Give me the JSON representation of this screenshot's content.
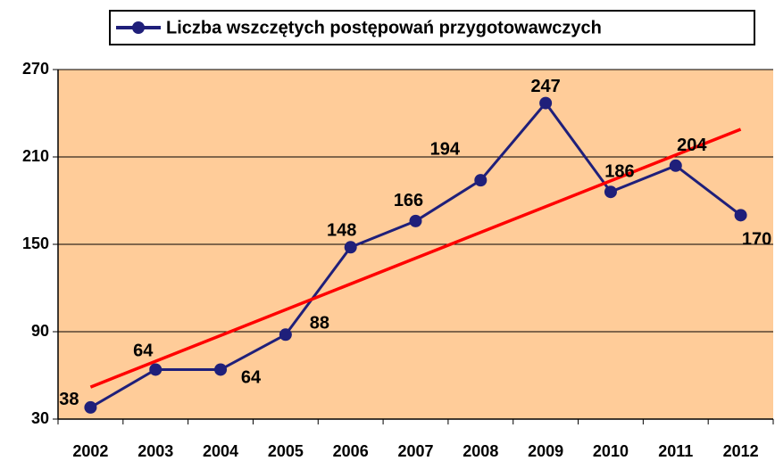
{
  "chart_data": {
    "type": "line",
    "categories": [
      "2002",
      "2003",
      "2004",
      "2005",
      "2006",
      "2007",
      "2008",
      "2009",
      "2010",
      "2011",
      "2012"
    ],
    "series": [
      {
        "name": "Liczba wszczętych postępowań przygotowawczych",
        "color": "#1f1f7a",
        "values": [
          38,
          64,
          64,
          88,
          148,
          166,
          194,
          247,
          186,
          204,
          170
        ]
      }
    ],
    "trend": {
      "color": "#ff0000",
      "values": [
        52,
        229
      ]
    },
    "ylim": [
      30,
      270
    ],
    "yticks": [
      30,
      90,
      150,
      210,
      270
    ],
    "grid": true,
    "plot_color": "#ffcc99",
    "legend": "top"
  }
}
